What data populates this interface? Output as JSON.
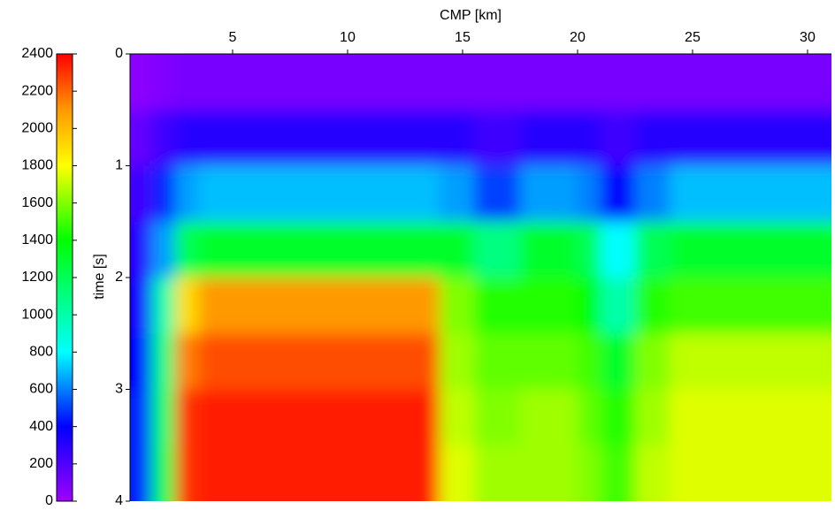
{
  "chart_data": {
    "type": "heatmap",
    "xlabel": "CMP [km]",
    "ylabel": "time [s]",
    "xbins": [
      0.54,
      1.5,
      2.5,
      3.5,
      5,
      7,
      9,
      11,
      13,
      14,
      15.5,
      17.5,
      20,
      21,
      22.5,
      24,
      31.04
    ],
    "ybins": [
      0,
      0.5,
      1,
      1.5,
      2,
      2.5,
      3,
      3.5,
      4
    ],
    "z": [
      [
        50,
        80,
        100,
        100,
        100,
        100,
        100,
        100,
        100,
        100,
        100,
        100,
        100,
        100,
        100,
        100
      ],
      [
        150,
        250,
        300,
        300,
        300,
        300,
        300,
        300,
        300,
        300,
        250,
        300,
        300,
        250,
        300,
        300
      ],
      [
        250,
        450,
        650,
        700,
        700,
        700,
        700,
        700,
        700,
        650,
        500,
        650,
        600,
        400,
        600,
        700
      ],
      [
        300,
        650,
        1200,
        1300,
        1300,
        1300,
        1300,
        1300,
        1300,
        1300,
        1100,
        1300,
        1200,
        800,
        1200,
        1300
      ],
      [
        350,
        1000,
        1900,
        2100,
        2100,
        2100,
        2100,
        2100,
        2100,
        1600,
        1450,
        1450,
        1400,
        1000,
        1450,
        1500
      ],
      [
        400,
        1100,
        2150,
        2250,
        2250,
        2250,
        2250,
        2250,
        2250,
        1650,
        1550,
        1550,
        1500,
        1300,
        1600,
        1700
      ],
      [
        450,
        1150,
        2300,
        2350,
        2350,
        2350,
        2350,
        2350,
        2350,
        1700,
        1600,
        1650,
        1550,
        1450,
        1650,
        1750
      ],
      [
        450,
        1200,
        2300,
        2350,
        2350,
        2350,
        2350,
        2350,
        2350,
        1750,
        1650,
        1650,
        1600,
        1500,
        1700,
        1750
      ]
    ],
    "xlim": [
      0.54,
      31.04
    ],
    "xticks": [
      5,
      10,
      15,
      20,
      25,
      30
    ],
    "ylim": [
      0,
      4
    ],
    "yticks": [
      0,
      1,
      2,
      3,
      4
    ],
    "y_inverted": true,
    "clim": [
      0,
      2400
    ],
    "cticks": [
      0,
      200,
      400,
      600,
      800,
      1000,
      1200,
      1400,
      1600,
      1800,
      2000,
      2200,
      2400
    ],
    "colormap": [
      [
        0,
        "#a000ff"
      ],
      [
        400,
        "#0000ff"
      ],
      [
        800,
        "#00ffff"
      ],
      [
        1400,
        "#00ff00"
      ],
      [
        1800,
        "#ffff00"
      ],
      [
        2100,
        "#ff9900"
      ],
      [
        2400,
        "#ff0000"
      ]
    ]
  }
}
